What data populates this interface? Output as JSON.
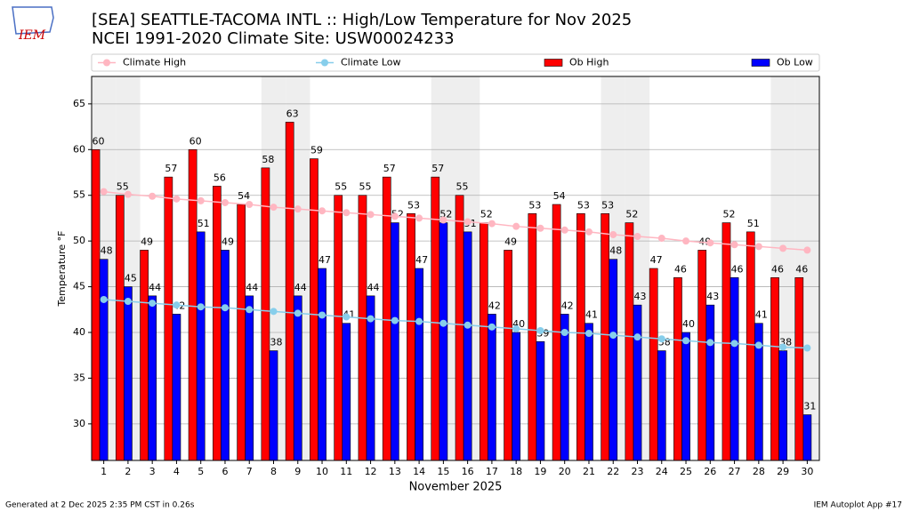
{
  "chart_data": {
    "type": "bar",
    "title": "[SEA] SEATTLE-TACOMA INTL :: High/Low Temperature for Nov 2025",
    "subtitle": "NCEI 1991-2020 Climate Site: USW00024233",
    "logo_text": "IEM",
    "x_label": "November 2025",
    "y_label": "Temperature °F",
    "footer_left": "Generated at 2 Dec 2025 2:35 PM CST in 0.26s",
    "footer_right": "IEM Autoplot App #17",
    "x": [
      1,
      2,
      3,
      4,
      5,
      6,
      7,
      8,
      9,
      10,
      11,
      12,
      13,
      14,
      15,
      16,
      17,
      18,
      19,
      20,
      21,
      22,
      23,
      24,
      25,
      26,
      27,
      28,
      29,
      30
    ],
    "xlim": [
      0.5,
      30.5
    ],
    "xticks": [
      1,
      2,
      3,
      4,
      5,
      6,
      7,
      8,
      9,
      10,
      11,
      12,
      13,
      14,
      15,
      16,
      17,
      18,
      19,
      20,
      21,
      22,
      23,
      24,
      25,
      26,
      27,
      28,
      29,
      30
    ],
    "ylim": [
      26,
      68
    ],
    "yticks": [
      30,
      35,
      40,
      45,
      50,
      55,
      60,
      65
    ],
    "grid": true,
    "series": [
      {
        "name": "Climate High",
        "type": "line",
        "color": "#ffb6c1",
        "values": [
          55.4,
          55.1,
          54.9,
          54.6,
          54.4,
          54.2,
          54.0,
          53.7,
          53.5,
          53.3,
          53.1,
          52.9,
          52.7,
          52.5,
          52.3,
          52.1,
          51.9,
          51.6,
          51.4,
          51.2,
          51.0,
          50.7,
          50.5,
          50.3,
          50.0,
          49.8,
          49.6,
          49.4,
          49.2,
          49.0
        ]
      },
      {
        "name": "Climate Low",
        "type": "line",
        "color": "#87ceeb",
        "values": [
          43.6,
          43.4,
          43.2,
          43.0,
          42.8,
          42.7,
          42.5,
          42.3,
          42.1,
          41.9,
          41.7,
          41.5,
          41.3,
          41.2,
          41.0,
          40.8,
          40.6,
          40.4,
          40.2,
          40.0,
          39.9,
          39.7,
          39.5,
          39.3,
          39.1,
          38.9,
          38.8,
          38.6,
          38.4,
          38.3
        ]
      },
      {
        "name": "Ob High",
        "type": "bar",
        "color": "#ff0000",
        "values": [
          60,
          55,
          49,
          57,
          60,
          56,
          54,
          58,
          63,
          59,
          55,
          55,
          57,
          53,
          57,
          55,
          52,
          49,
          53,
          54,
          53,
          53,
          52,
          47,
          46,
          49,
          52,
          51,
          46,
          46
        ]
      },
      {
        "name": "Ob Low",
        "type": "bar",
        "color": "#0000ff",
        "values": [
          48,
          45,
          44,
          42,
          51,
          49,
          44,
          38,
          44,
          47,
          41,
          44,
          52,
          47,
          52,
          51,
          42,
          40,
          39,
          42,
          41,
          48,
          43,
          38,
          40,
          43,
          46,
          41,
          38,
          31
        ]
      }
    ]
  }
}
